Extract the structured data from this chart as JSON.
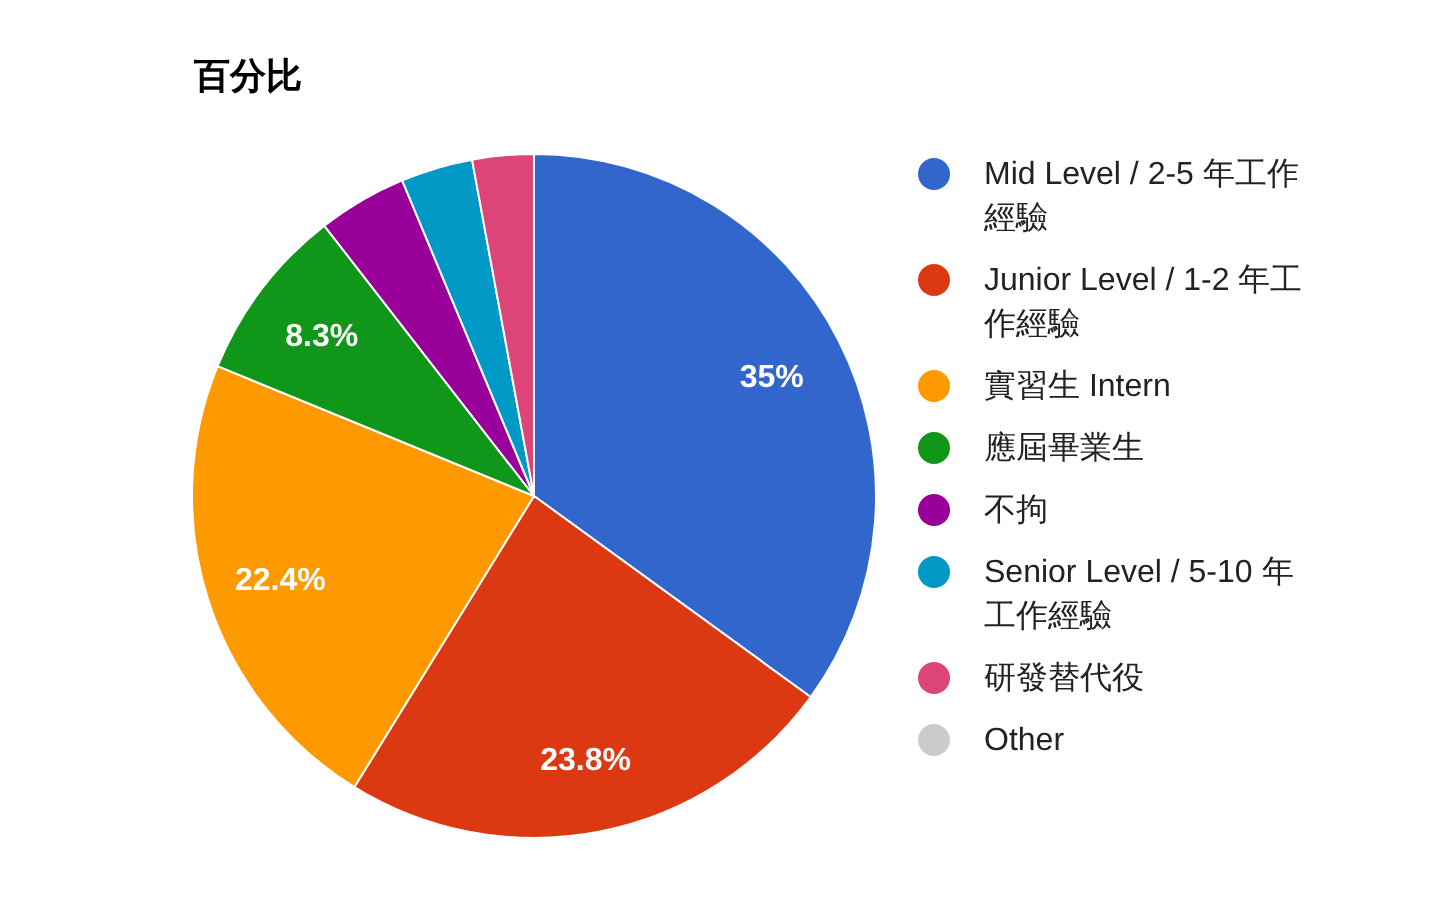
{
  "chart_data": {
    "type": "pie",
    "title": "百分比",
    "categories": [
      "Mid Level / 2-5 年工作經驗",
      "Junior Level / 1-2 年工作經驗",
      "實習生 Intern",
      "應屆畢業生",
      "不拘",
      "Senior Level / 5-10 年工作經驗",
      "研發替代役",
      "Other"
    ],
    "values": [
      35,
      23.8,
      22.4,
      8.3,
      4.2,
      3.4,
      2.9,
      0
    ],
    "colors": [
      "#3366cc",
      "#dc3912",
      "#ff9900",
      "#109618",
      "#990099",
      "#0099c6",
      "#dd4477",
      "#cccccc"
    ],
    "value_labels": [
      "35%",
      "23.8%",
      "22.4%",
      "8.3%",
      null,
      null,
      null,
      null
    ],
    "legend": "right"
  }
}
